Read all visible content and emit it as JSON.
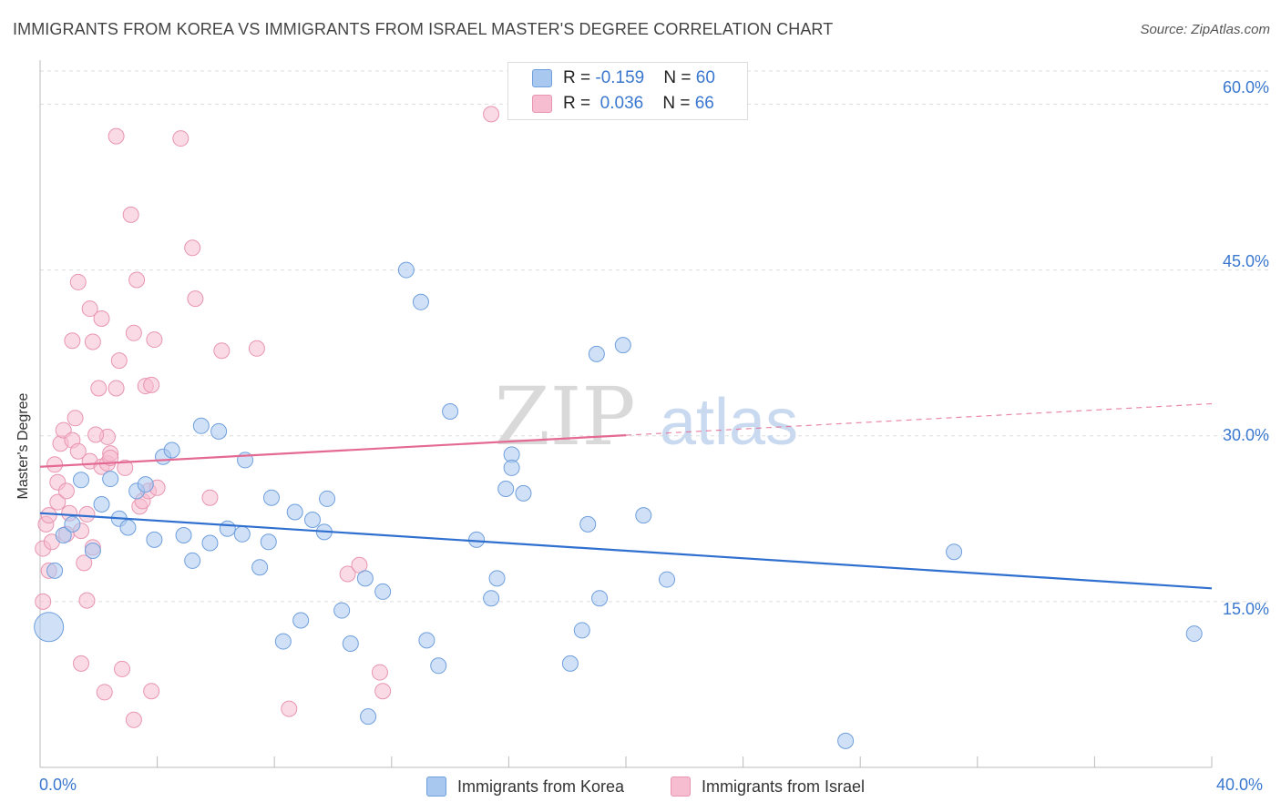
{
  "title": "IMMIGRANTS FROM KOREA VS IMMIGRANTS FROM ISRAEL MASTER'S DEGREE CORRELATION CHART",
  "source": "Source: ZipAtlas.com",
  "watermark": {
    "zip": "ZIP",
    "atlas": "atlas"
  },
  "legend": {
    "korea": {
      "r_label": "R = ",
      "r_value": "-0.159",
      "n_label": "N = ",
      "n_value": "60"
    },
    "israel": {
      "r_label": "R = ",
      "r_value": "0.036",
      "n_label": "N = ",
      "n_value": "66"
    }
  },
  "bottom_legend": {
    "korea": "Immigrants from Korea",
    "israel": "Immigrants from Israel"
  },
  "colors": {
    "korea_fill": "#a9c8f0",
    "korea_stroke": "#6f9fdc",
    "korea_line": "#2f6fcf",
    "israel_fill": "#f6bccf",
    "israel_stroke": "#e895b0",
    "israel_line": "#e46a93",
    "tick_text": "#3a78cf",
    "grid": "#dddddd"
  },
  "chart_data": {
    "type": "scatter",
    "xlabel": "",
    "ylabel": "Master's Degree",
    "xlim": [
      0,
      40
    ],
    "ylim": [
      0,
      63
    ],
    "x_tick_labels": [
      "0.0%",
      "40.0%"
    ],
    "y_ticks": [
      15,
      30,
      45,
      60
    ],
    "y_tick_labels": [
      "15.0%",
      "30.0%",
      "45.0%",
      "60.0%"
    ],
    "grid": true,
    "legend_position": "top-center",
    "series": [
      {
        "name": "Immigrants from Korea",
        "trend": {
          "x": [
            0,
            40
          ],
          "y": [
            23.0,
            16.2
          ],
          "solid_until": 40
        },
        "points": [
          {
            "x": 0.3,
            "y": 12.7,
            "big": true
          },
          {
            "x": 0.5,
            "y": 17.8
          },
          {
            "x": 0.8,
            "y": 21.0
          },
          {
            "x": 1.1,
            "y": 22.0
          },
          {
            "x": 1.4,
            "y": 26.0
          },
          {
            "x": 1.8,
            "y": 19.6
          },
          {
            "x": 2.1,
            "y": 23.8
          },
          {
            "x": 2.4,
            "y": 26.1
          },
          {
            "x": 2.7,
            "y": 22.5
          },
          {
            "x": 3.0,
            "y": 21.7
          },
          {
            "x": 3.3,
            "y": 25.0
          },
          {
            "x": 3.6,
            "y": 25.6
          },
          {
            "x": 3.9,
            "y": 20.6
          },
          {
            "x": 4.2,
            "y": 28.1
          },
          {
            "x": 4.5,
            "y": 28.7
          },
          {
            "x": 4.9,
            "y": 21.0
          },
          {
            "x": 5.2,
            "y": 18.7
          },
          {
            "x": 5.5,
            "y": 30.9
          },
          {
            "x": 5.8,
            "y": 20.3
          },
          {
            "x": 6.1,
            "y": 30.4
          },
          {
            "x": 6.4,
            "y": 21.6
          },
          {
            "x": 6.9,
            "y": 21.1
          },
          {
            "x": 7.0,
            "y": 27.8
          },
          {
            "x": 7.5,
            "y": 18.1
          },
          {
            "x": 7.8,
            "y": 20.4
          },
          {
            "x": 7.9,
            "y": 24.4
          },
          {
            "x": 8.3,
            "y": 11.4
          },
          {
            "x": 8.7,
            "y": 23.1
          },
          {
            "x": 8.9,
            "y": 13.3
          },
          {
            "x": 9.3,
            "y": 22.4
          },
          {
            "x": 9.7,
            "y": 21.3
          },
          {
            "x": 9.8,
            "y": 24.3
          },
          {
            "x": 10.3,
            "y": 14.2
          },
          {
            "x": 10.6,
            "y": 11.2
          },
          {
            "x": 11.1,
            "y": 17.1
          },
          {
            "x": 11.2,
            "y": 4.6
          },
          {
            "x": 11.7,
            "y": 15.9
          },
          {
            "x": 12.5,
            "y": 45.0
          },
          {
            "x": 13.0,
            "y": 42.1
          },
          {
            "x": 13.2,
            "y": 11.5
          },
          {
            "x": 13.6,
            "y": 9.2
          },
          {
            "x": 14.0,
            "y": 32.2
          },
          {
            "x": 14.9,
            "y": 20.6
          },
          {
            "x": 15.4,
            "y": 15.3
          },
          {
            "x": 15.6,
            "y": 17.1
          },
          {
            "x": 15.9,
            "y": 25.2
          },
          {
            "x": 16.1,
            "y": 28.3
          },
          {
            "x": 16.1,
            "y": 27.1
          },
          {
            "x": 16.5,
            "y": 24.8
          },
          {
            "x": 18.1,
            "y": 9.4
          },
          {
            "x": 18.5,
            "y": 12.4
          },
          {
            "x": 18.7,
            "y": 22.0
          },
          {
            "x": 19.0,
            "y": 37.4
          },
          {
            "x": 19.1,
            "y": 15.3
          },
          {
            "x": 19.9,
            "y": 38.2
          },
          {
            "x": 20.6,
            "y": 22.8
          },
          {
            "x": 21.4,
            "y": 17.0
          },
          {
            "x": 27.5,
            "y": 2.4
          },
          {
            "x": 31.2,
            "y": 19.5
          },
          {
            "x": 39.4,
            "y": 12.1
          }
        ]
      },
      {
        "name": "Immigrants from Israel",
        "trend": {
          "x": [
            0,
            40
          ],
          "y": [
            27.2,
            32.9
          ],
          "solid_until": 20
        },
        "points": [
          {
            "x": 0.1,
            "y": 15.0
          },
          {
            "x": 0.1,
            "y": 19.8
          },
          {
            "x": 0.2,
            "y": 22.0
          },
          {
            "x": 0.3,
            "y": 22.8
          },
          {
            "x": 0.3,
            "y": 17.8
          },
          {
            "x": 0.4,
            "y": 20.4
          },
          {
            "x": 0.5,
            "y": 27.4
          },
          {
            "x": 0.6,
            "y": 25.8
          },
          {
            "x": 0.6,
            "y": 24.0
          },
          {
            "x": 0.7,
            "y": 29.3
          },
          {
            "x": 0.8,
            "y": 30.5
          },
          {
            "x": 0.9,
            "y": 25.0
          },
          {
            "x": 0.9,
            "y": 21.1
          },
          {
            "x": 1.0,
            "y": 23.0
          },
          {
            "x": 1.1,
            "y": 29.6
          },
          {
            "x": 1.1,
            "y": 38.6
          },
          {
            "x": 1.2,
            "y": 31.6
          },
          {
            "x": 1.3,
            "y": 43.9
          },
          {
            "x": 1.3,
            "y": 28.6
          },
          {
            "x": 1.4,
            "y": 9.4
          },
          {
            "x": 1.4,
            "y": 21.4
          },
          {
            "x": 1.5,
            "y": 18.5
          },
          {
            "x": 1.6,
            "y": 22.9
          },
          {
            "x": 1.6,
            "y": 15.1
          },
          {
            "x": 1.7,
            "y": 27.7
          },
          {
            "x": 1.7,
            "y": 41.5
          },
          {
            "x": 1.8,
            "y": 38.5
          },
          {
            "x": 1.8,
            "y": 19.9
          },
          {
            "x": 2.0,
            "y": 34.3
          },
          {
            "x": 2.1,
            "y": 27.2
          },
          {
            "x": 2.1,
            "y": 40.6
          },
          {
            "x": 2.2,
            "y": 6.8
          },
          {
            "x": 2.3,
            "y": 27.5
          },
          {
            "x": 2.3,
            "y": 29.9
          },
          {
            "x": 2.4,
            "y": 28.4
          },
          {
            "x": 2.4,
            "y": 28.0
          },
          {
            "x": 2.6,
            "y": 34.3
          },
          {
            "x": 2.6,
            "y": 57.1
          },
          {
            "x": 2.7,
            "y": 36.8
          },
          {
            "x": 2.8,
            "y": 8.9
          },
          {
            "x": 2.9,
            "y": 27.1
          },
          {
            "x": 3.1,
            "y": 50.0
          },
          {
            "x": 3.2,
            "y": 39.3
          },
          {
            "x": 3.2,
            "y": 4.3
          },
          {
            "x": 3.3,
            "y": 44.1
          },
          {
            "x": 3.4,
            "y": 23.6
          },
          {
            "x": 3.5,
            "y": 24.1
          },
          {
            "x": 3.6,
            "y": 34.5
          },
          {
            "x": 3.7,
            "y": 25.0
          },
          {
            "x": 3.8,
            "y": 34.6
          },
          {
            "x": 3.8,
            "y": 6.9
          },
          {
            "x": 3.9,
            "y": 38.7
          },
          {
            "x": 4.0,
            "y": 25.3
          },
          {
            "x": 4.8,
            "y": 56.9
          },
          {
            "x": 5.2,
            "y": 47.0
          },
          {
            "x": 5.3,
            "y": 42.4
          },
          {
            "x": 5.8,
            "y": 24.4
          },
          {
            "x": 6.2,
            "y": 37.7
          },
          {
            "x": 7.4,
            "y": 37.9
          },
          {
            "x": 8.5,
            "y": 5.3
          },
          {
            "x": 10.5,
            "y": 17.5
          },
          {
            "x": 10.9,
            "y": 18.3
          },
          {
            "x": 11.6,
            "y": 8.6
          },
          {
            "x": 11.7,
            "y": 6.9
          },
          {
            "x": 15.4,
            "y": 59.1
          },
          {
            "x": 1.9,
            "y": 30.1
          }
        ]
      }
    ]
  }
}
